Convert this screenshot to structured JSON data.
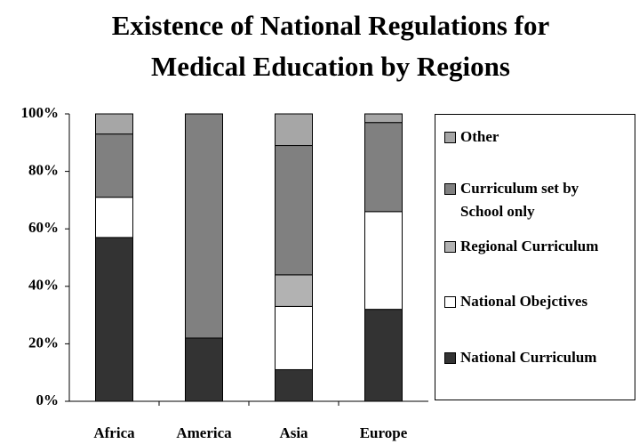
{
  "chart_data": {
    "type": "stacked_bar_100",
    "title": "Existence of National Regulations for Medical Education by Regions",
    "categories": [
      "Africa",
      "America",
      "Asia",
      "Europe"
    ],
    "series": [
      {
        "name": "National Curriculum",
        "color": "#333333",
        "values": [
          57,
          22,
          11,
          32
        ]
      },
      {
        "name": "National Obejctives",
        "color": "#ffffff",
        "values": [
          14,
          0,
          22,
          34
        ]
      },
      {
        "name": "Regional Curriculum",
        "color": "#b2b2b2",
        "values": [
          0,
          0,
          11,
          0
        ]
      },
      {
        "name": "Curriculum set by School only",
        "color": "#808080",
        "values": [
          22,
          78,
          45,
          31
        ]
      },
      {
        "name": "Other",
        "color": "#a6a6a6",
        "values": [
          7,
          0,
          11,
          3
        ]
      }
    ],
    "ylim": [
      0,
      100
    ],
    "yticks": [
      {
        "value": 0,
        "label": "0%"
      },
      {
        "value": 20,
        "label": "20%"
      },
      {
        "value": 40,
        "label": "40%"
      },
      {
        "value": 60,
        "label": "60%"
      },
      {
        "value": 80,
        "label": "80%"
      },
      {
        "value": 100,
        "label": "100%"
      }
    ],
    "legend": "right"
  }
}
